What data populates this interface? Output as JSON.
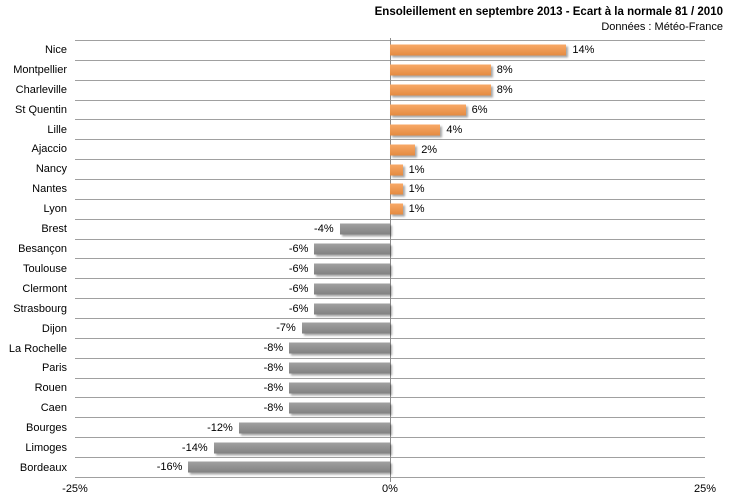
{
  "chart_data": {
    "type": "bar",
    "orientation": "horizontal",
    "title": "Ensoleillement en septembre 2013 - Ecart à la normale 81 / 2010",
    "subtitle": "Données : Météo-France",
    "categories": [
      "Nice",
      "Montpellier",
      "Charleville",
      "St Quentin",
      "Lille",
      "Ajaccio",
      "Nancy",
      "Nantes",
      "Lyon",
      "Brest",
      "Besançon",
      "Toulouse",
      "Clermont",
      "Strasbourg",
      "Dijon",
      "La Rochelle",
      "Paris",
      "Rouen",
      "Caen",
      "Bourges",
      "Limoges",
      "Bordeaux"
    ],
    "values": [
      14,
      8,
      8,
      6,
      4,
      2,
      1,
      1,
      1,
      -4,
      -6,
      -6,
      -6,
      -6,
      -7,
      -8,
      -8,
      -8,
      -8,
      -12,
      -14,
      -16
    ],
    "data_labels": [
      "14%",
      "8%",
      "8%",
      "6%",
      "4%",
      "2%",
      "1%",
      "1%",
      "1%",
      "-4%",
      "-6%",
      "-6%",
      "-6%",
      "-6%",
      "-7%",
      "-8%",
      "-8%",
      "-8%",
      "-8%",
      "-12%",
      "-14%",
      "-16%"
    ],
    "xlabel": "",
    "ylabel": "",
    "xlim": [
      -25,
      25
    ],
    "x_ticks": [
      {
        "value": -25,
        "label": "-25%"
      },
      {
        "value": 0,
        "label": "0%"
      },
      {
        "value": 25,
        "label": "25%"
      }
    ],
    "legend": false,
    "gridlines": "horizontal category separators",
    "colors": {
      "positive": "#F79646",
      "negative": "#8C8C8C",
      "gridline": "#A0A0A0",
      "axis": "#8C8C8C",
      "text": "#000000"
    }
  }
}
